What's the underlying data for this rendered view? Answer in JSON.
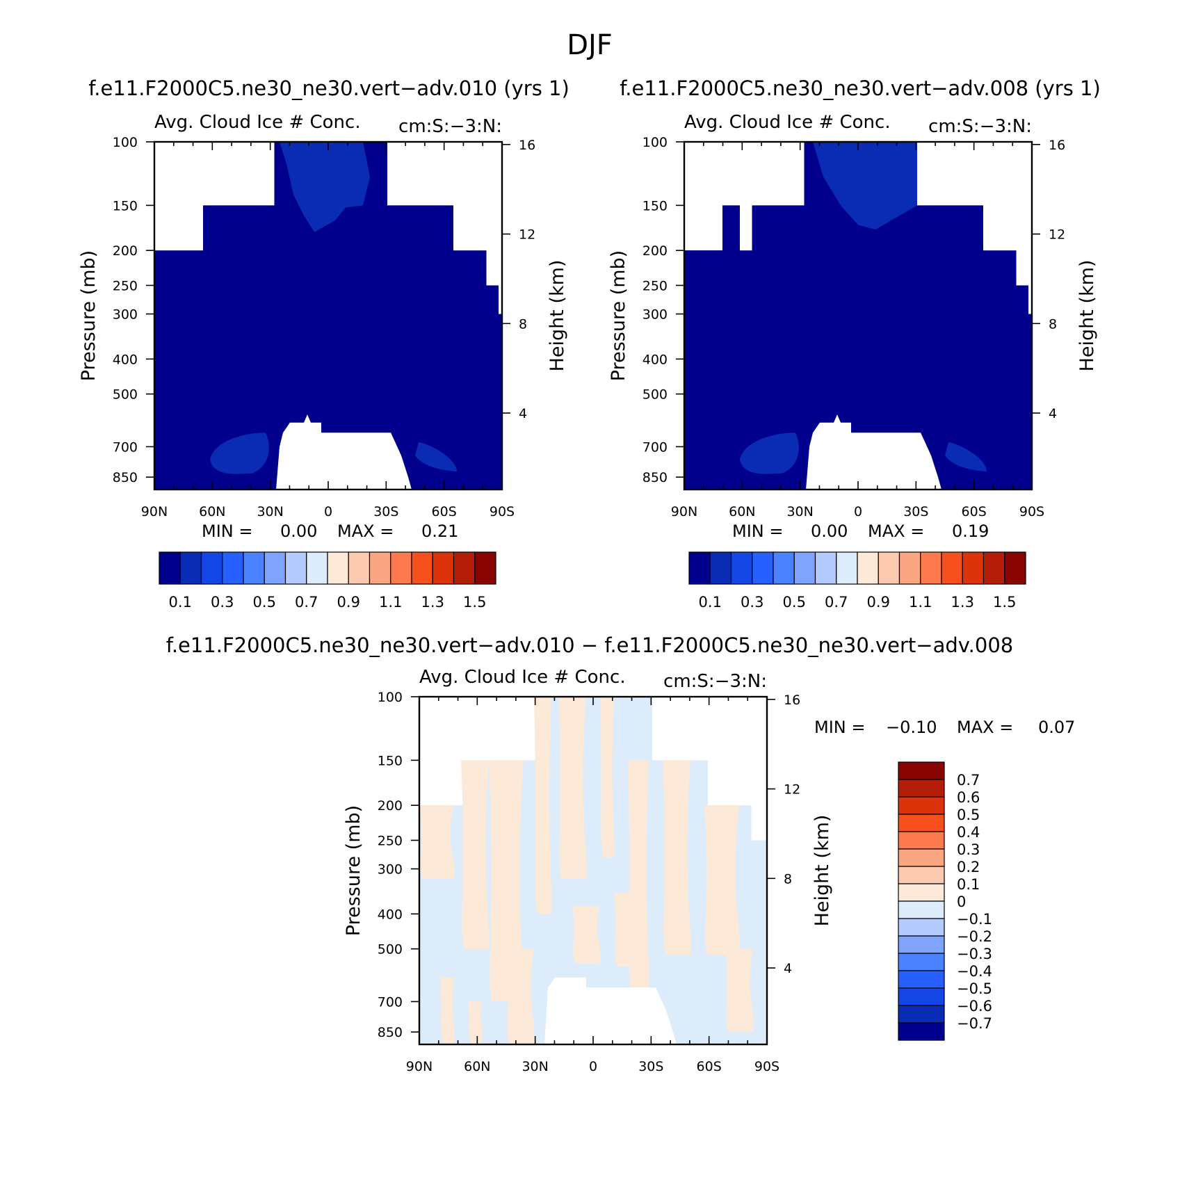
{
  "page_title": "DJF",
  "panel_a": {
    "case_title": "f.e11.F2000C5.ne30_ne30.vert−adv.010 (yrs 1)",
    "variable": "Avg. Cloud Ice # Conc.",
    "units": "cm:S:−3:N:",
    "stats": {
      "min_label": "MIN =",
      "min": "0.00",
      "max_label": "MAX =",
      "max": "0.21"
    }
  },
  "panel_b": {
    "case_title": "f.e11.F2000C5.ne30_ne30.vert−adv.008 (yrs 1)",
    "variable": "Avg. Cloud Ice # Conc.",
    "units": "cm:S:−3:N:",
    "stats": {
      "min_label": "MIN =",
      "min": "0.00",
      "max_label": "MAX =",
      "max": "0.19"
    }
  },
  "panel_diff": {
    "case_title": "f.e11.F2000C5.ne30_ne30.vert−adv.010 − f.e11.F2000C5.ne30_ne30.vert−adv.008",
    "variable": "Avg. Cloud Ice # Conc.",
    "units": "cm:S:−3:N:",
    "stats": {
      "min_label": "MIN =",
      "min": "−0.10",
      "max_label": "MAX =",
      "max": "0.07"
    }
  },
  "chart_data": [
    {
      "type": "contour",
      "title": "Avg. Cloud Ice # Conc.",
      "xlabel": "",
      "ylabel": "Pressure (mb)",
      "ylabel_right": "Height (km)",
      "x_tick_labels": [
        "90N",
        "60N",
        "30N",
        "0",
        "30S",
        "60S",
        "90S"
      ],
      "y_tick_labels": [
        "100",
        "150",
        "200",
        "250",
        "300",
        "400",
        "500",
        "700",
        "850"
      ],
      "y_right_tick_labels": [
        "16",
        "12",
        "8",
        "4"
      ],
      "colorbar_levels": [
        0.1,
        0.2,
        0.3,
        0.4,
        0.5,
        0.6,
        0.7,
        0.8,
        0.9,
        1.0,
        1.1,
        1.2,
        1.3,
        1.4,
        1.5
      ],
      "colorbar_labels": [
        "0.1",
        "0.3",
        "0.5",
        "0.7",
        "0.9",
        "1.1",
        "1.3",
        "1.5"
      ],
      "colorbar_colors": [
        "#00008c",
        "#0a2cb4",
        "#1446e6",
        "#2860ff",
        "#4a82ff",
        "#7ea4ff",
        "#b4cbff",
        "#dcecfb",
        "#fde9d7",
        "#fccab1",
        "#fba683",
        "#fc7a4d",
        "#f6501e",
        "#dc330b",
        "#b41e08",
        "#8a0303"
      ],
      "min": 0.0,
      "max": 0.21
    },
    {
      "type": "contour",
      "title": "Avg. Cloud Ice # Conc.",
      "xlabel": "",
      "ylabel": "Pressure (mb)",
      "ylabel_right": "Height (km)",
      "x_tick_labels": [
        "90N",
        "60N",
        "30N",
        "0",
        "30S",
        "60S",
        "90S"
      ],
      "y_tick_labels": [
        "100",
        "150",
        "200",
        "250",
        "300",
        "400",
        "500",
        "700",
        "850"
      ],
      "y_right_tick_labels": [
        "16",
        "12",
        "8",
        "4"
      ],
      "colorbar_levels": [
        0.1,
        0.2,
        0.3,
        0.4,
        0.5,
        0.6,
        0.7,
        0.8,
        0.9,
        1.0,
        1.1,
        1.2,
        1.3,
        1.4,
        1.5
      ],
      "colorbar_labels": [
        "0.1",
        "0.3",
        "0.5",
        "0.7",
        "0.9",
        "1.1",
        "1.3",
        "1.5"
      ],
      "colorbar_colors": [
        "#00008c",
        "#0a2cb4",
        "#1446e6",
        "#2860ff",
        "#4a82ff",
        "#7ea4ff",
        "#b4cbff",
        "#dcecfb",
        "#fde9d7",
        "#fccab1",
        "#fba683",
        "#fc7a4d",
        "#f6501e",
        "#dc330b",
        "#b41e08",
        "#8a0303"
      ],
      "min": 0.0,
      "max": 0.19
    },
    {
      "type": "contour",
      "title": "Avg. Cloud Ice # Conc.",
      "xlabel": "",
      "ylabel": "Pressure (mb)",
      "ylabel_right": "Height (km)",
      "x_tick_labels": [
        "90N",
        "60N",
        "30N",
        "0",
        "30S",
        "60S",
        "90S"
      ],
      "y_tick_labels": [
        "100",
        "150",
        "200",
        "250",
        "300",
        "400",
        "500",
        "700",
        "850"
      ],
      "y_right_tick_labels": [
        "16",
        "12",
        "8",
        "4"
      ],
      "colorbar_levels": [
        -0.7,
        -0.6,
        -0.5,
        -0.4,
        -0.3,
        -0.2,
        -0.1,
        0,
        0.1,
        0.2,
        0.3,
        0.4,
        0.5,
        0.6,
        0.7
      ],
      "colorbar_labels": [
        "0.7",
        "0.6",
        "0.5",
        "0.4",
        "0.3",
        "0.2",
        "0.1",
        "0",
        "−0.1",
        "−0.2",
        "−0.3",
        "−0.4",
        "−0.5",
        "−0.6",
        "−0.7"
      ],
      "colorbar_colors": [
        "#8a0303",
        "#b41e08",
        "#dc330b",
        "#f6501e",
        "#fc7a4d",
        "#fba683",
        "#fccab1",
        "#fde9d7",
        "#dcecfb",
        "#b4cbff",
        "#7ea4ff",
        "#4a82ff",
        "#2860ff",
        "#1446e6",
        "#0a2cb4",
        "#00008c"
      ],
      "min": -0.1,
      "max": 0.07
    }
  ]
}
